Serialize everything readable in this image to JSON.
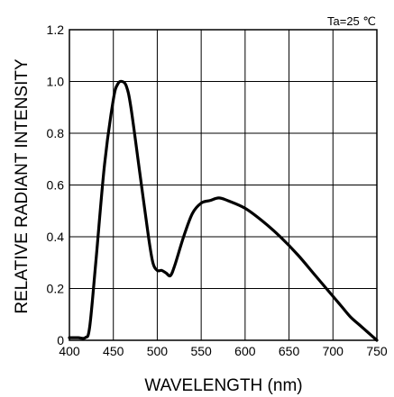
{
  "chart_data": {
    "type": "line",
    "title": "",
    "xlabel": "WAVELENGTH (nm)",
    "ylabel": "RELATIVE RADIANT INTENSITY",
    "xlim": [
      400,
      750
    ],
    "ylim": [
      0,
      1.2
    ],
    "x_ticks": [
      400,
      450,
      500,
      550,
      600,
      650,
      700,
      750
    ],
    "y_ticks": [
      0,
      0.2,
      0.4,
      0.6,
      0.8,
      1.0,
      1.2
    ],
    "x_tick_labels": [
      "400",
      "450",
      "500",
      "550",
      "600",
      "650",
      "700",
      "750"
    ],
    "y_tick_labels": [
      "0",
      "0.2",
      "0.4",
      "0.6",
      "0.8",
      "1.0",
      "1.2"
    ],
    "grid": true,
    "annotation": "Ta=25 ℃",
    "series": [
      {
        "x": [
          400,
          410,
          418,
          423,
          430,
          440,
          450,
          455,
          460,
          465,
          470,
          480,
          490,
          495,
          500,
          505,
          510,
          515,
          520,
          530,
          540,
          550,
          560,
          570,
          580,
          600,
          620,
          640,
          660,
          680,
          700,
          710,
          720,
          730,
          740,
          750
        ],
        "y": [
          0.01,
          0.01,
          0.01,
          0.05,
          0.3,
          0.68,
          0.93,
          0.99,
          1.0,
          0.98,
          0.9,
          0.65,
          0.4,
          0.3,
          0.27,
          0.27,
          0.26,
          0.25,
          0.29,
          0.4,
          0.49,
          0.53,
          0.54,
          0.55,
          0.54,
          0.51,
          0.46,
          0.4,
          0.33,
          0.25,
          0.17,
          0.13,
          0.09,
          0.06,
          0.03,
          0.0
        ]
      }
    ]
  }
}
